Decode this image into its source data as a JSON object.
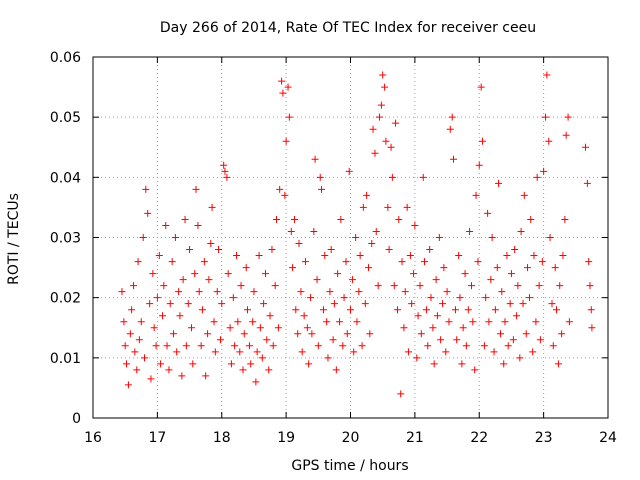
{
  "chart_data": {
    "type": "scatter",
    "title": "Day 266 of 2014, Rate Of TEC Index for receiver ceeu",
    "xlabel": "GPS time / hours",
    "ylabel": "ROTI / TECUs",
    "xlim": [
      16,
      24
    ],
    "ylim": [
      0,
      0.06
    ],
    "xticks": [
      16,
      17,
      18,
      19,
      20,
      21,
      22,
      23,
      24
    ],
    "yticks": [
      0,
      0.01,
      0.02,
      0.03,
      0.04,
      0.05,
      0.06
    ],
    "xtick_labels": [
      "16",
      "17",
      "18",
      "19",
      "20",
      "21",
      "22",
      "23",
      "24"
    ],
    "ytick_labels": [
      "0",
      "0.01",
      "0.02",
      "0.03",
      "0.04",
      "0.05",
      "0.06"
    ],
    "grid": true,
    "marker": "+",
    "color": "#ff0000",
    "series": [
      {
        "name": "ROTI",
        "points": [
          [
            16.45,
            0.021
          ],
          [
            16.48,
            0.016
          ],
          [
            16.5,
            0.012
          ],
          [
            16.52,
            0.009
          ],
          [
            16.55,
            0.0055
          ],
          [
            16.58,
            0.014
          ],
          [
            16.6,
            0.018
          ],
          [
            16.63,
            0.022
          ],
          [
            16.65,
            0.011
          ],
          [
            16.68,
            0.008
          ],
          [
            16.7,
            0.026
          ],
          [
            16.72,
            0.013
          ],
          [
            16.75,
            0.016
          ],
          [
            16.78,
            0.03
          ],
          [
            16.8,
            0.01
          ],
          [
            16.82,
            0.038
          ],
          [
            16.85,
            0.034
          ],
          [
            16.88,
            0.019
          ],
          [
            16.9,
            0.0065
          ],
          [
            16.93,
            0.024
          ],
          [
            16.95,
            0.015
          ],
          [
            16.98,
            0.012
          ],
          [
            17.0,
            0.02
          ],
          [
            17.03,
            0.027
          ],
          [
            17.05,
            0.009
          ],
          [
            17.08,
            0.017
          ],
          [
            17.1,
            0.022
          ],
          [
            17.13,
            0.032
          ],
          [
            17.15,
            0.012
          ],
          [
            17.18,
            0.008
          ],
          [
            17.2,
            0.019
          ],
          [
            17.23,
            0.026
          ],
          [
            17.25,
            0.014
          ],
          [
            17.28,
            0.03
          ],
          [
            17.3,
            0.011
          ],
          [
            17.33,
            0.021
          ],
          [
            17.35,
            0.017
          ],
          [
            17.38,
            0.007
          ],
          [
            17.4,
            0.023
          ],
          [
            17.43,
            0.033
          ],
          [
            17.45,
            0.012
          ],
          [
            17.48,
            0.019
          ],
          [
            17.5,
            0.028
          ],
          [
            17.53,
            0.015
          ],
          [
            17.55,
            0.009
          ],
          [
            17.58,
            0.024
          ],
          [
            17.6,
            0.038
          ],
          [
            17.63,
            0.032
          ],
          [
            17.65,
            0.021
          ],
          [
            17.68,
            0.012
          ],
          [
            17.7,
            0.018
          ],
          [
            17.73,
            0.026
          ],
          [
            17.75,
            0.007
          ],
          [
            17.78,
            0.014
          ],
          [
            17.8,
            0.023
          ],
          [
            17.83,
            0.029
          ],
          [
            17.85,
            0.035
          ],
          [
            17.88,
            0.016
          ],
          [
            17.9,
            0.011
          ],
          [
            17.93,
            0.021
          ],
          [
            17.95,
            0.028
          ],
          [
            17.98,
            0.013
          ],
          [
            18.0,
            0.019
          ],
          [
            18.03,
            0.042
          ],
          [
            18.05,
            0.041
          ],
          [
            18.08,
            0.04
          ],
          [
            18.1,
            0.024
          ],
          [
            18.13,
            0.015
          ],
          [
            18.15,
            0.009
          ],
          [
            18.18,
            0.02
          ],
          [
            18.2,
            0.012
          ],
          [
            18.23,
            0.027
          ],
          [
            18.25,
            0.016
          ],
          [
            18.28,
            0.011
          ],
          [
            18.3,
            0.022
          ],
          [
            18.33,
            0.008
          ],
          [
            18.35,
            0.014
          ],
          [
            18.38,
            0.025
          ],
          [
            18.4,
            0.018
          ],
          [
            18.43,
            0.012
          ],
          [
            18.45,
            0.009
          ],
          [
            18.48,
            0.016
          ],
          [
            18.5,
            0.021
          ],
          [
            18.53,
            0.006
          ],
          [
            18.55,
            0.011
          ],
          [
            18.58,
            0.027
          ],
          [
            18.6,
            0.015
          ],
          [
            18.63,
            0.01
          ],
          [
            18.65,
            0.019
          ],
          [
            18.68,
            0.024
          ],
          [
            18.7,
            0.013
          ],
          [
            18.73,
            0.008
          ],
          [
            18.75,
            0.017
          ],
          [
            18.78,
            0.028
          ],
          [
            18.8,
            0.012
          ],
          [
            18.83,
            0.022
          ],
          [
            18.85,
            0.033
          ],
          [
            18.88,
            0.015
          ],
          [
            18.9,
            0.038
          ],
          [
            18.93,
            0.056
          ],
          [
            18.95,
            0.054
          ],
          [
            18.98,
            0.037
          ],
          [
            19.0,
            0.046
          ],
          [
            19.03,
            0.055
          ],
          [
            19.05,
            0.05
          ],
          [
            19.08,
            0.031
          ],
          [
            19.1,
            0.025
          ],
          [
            19.13,
            0.033
          ],
          [
            19.15,
            0.018
          ],
          [
            19.18,
            0.014
          ],
          [
            19.2,
            0.029
          ],
          [
            19.23,
            0.021
          ],
          [
            19.25,
            0.011
          ],
          [
            19.28,
            0.017
          ],
          [
            19.3,
            0.026
          ],
          [
            19.33,
            0.015
          ],
          [
            19.35,
            0.009
          ],
          [
            19.38,
            0.02
          ],
          [
            19.4,
            0.014
          ],
          [
            19.43,
            0.031
          ],
          [
            19.45,
            0.043
          ],
          [
            19.48,
            0.023
          ],
          [
            19.5,
            0.012
          ],
          [
            19.53,
            0.04
          ],
          [
            19.55,
            0.038
          ],
          [
            19.58,
            0.018
          ],
          [
            19.6,
            0.027
          ],
          [
            19.63,
            0.016
          ],
          [
            19.65,
            0.01
          ],
          [
            19.68,
            0.021
          ],
          [
            19.7,
            0.028
          ],
          [
            19.73,
            0.013
          ],
          [
            19.75,
            0.019
          ],
          [
            19.78,
            0.008
          ],
          [
            19.8,
            0.024
          ],
          [
            19.83,
            0.016
          ],
          [
            19.85,
            0.033
          ],
          [
            19.88,
            0.012
          ],
          [
            19.9,
            0.02
          ],
          [
            19.93,
            0.026
          ],
          [
            19.95,
            0.014
          ],
          [
            19.98,
            0.041
          ],
          [
            20.0,
            0.018
          ],
          [
            20.03,
            0.023
          ],
          [
            20.05,
            0.011
          ],
          [
            20.08,
            0.03
          ],
          [
            20.1,
            0.016
          ],
          [
            20.13,
            0.021
          ],
          [
            20.15,
            0.027
          ],
          [
            20.18,
            0.012
          ],
          [
            20.2,
            0.035
          ],
          [
            20.23,
            0.019
          ],
          [
            20.25,
            0.037
          ],
          [
            20.28,
            0.025
          ],
          [
            20.3,
            0.014
          ],
          [
            20.33,
            0.029
          ],
          [
            20.35,
            0.048
          ],
          [
            20.38,
            0.044
          ],
          [
            20.4,
            0.031
          ],
          [
            20.43,
            0.022
          ],
          [
            20.45,
            0.05
          ],
          [
            20.48,
            0.052
          ],
          [
            20.5,
            0.057
          ],
          [
            20.53,
            0.055
          ],
          [
            20.55,
            0.046
          ],
          [
            20.58,
            0.035
          ],
          [
            20.6,
            0.028
          ],
          [
            20.63,
            0.045
          ],
          [
            20.65,
            0.04
          ],
          [
            20.68,
            0.022
          ],
          [
            20.7,
            0.049
          ],
          [
            20.73,
            0.018
          ],
          [
            20.75,
            0.033
          ],
          [
            20.78,
            0.004
          ],
          [
            20.8,
            0.026
          ],
          [
            20.83,
            0.015
          ],
          [
            20.85,
            0.021
          ],
          [
            20.88,
            0.035
          ],
          [
            20.9,
            0.011
          ],
          [
            20.93,
            0.027
          ],
          [
            20.95,
            0.019
          ],
          [
            20.98,
            0.024
          ],
          [
            21.0,
            0.032
          ],
          [
            21.03,
            0.01
          ],
          [
            21.05,
            0.017
          ],
          [
            21.08,
            0.022
          ],
          [
            21.1,
            0.014
          ],
          [
            21.13,
            0.04
          ],
          [
            21.15,
            0.026
          ],
          [
            21.18,
            0.018
          ],
          [
            21.2,
            0.012
          ],
          [
            21.23,
            0.028
          ],
          [
            21.25,
            0.02
          ],
          [
            21.28,
            0.015
          ],
          [
            21.3,
            0.009
          ],
          [
            21.33,
            0.023
          ],
          [
            21.35,
            0.017
          ],
          [
            21.38,
            0.03
          ],
          [
            21.4,
            0.013
          ],
          [
            21.43,
            0.019
          ],
          [
            21.45,
            0.025
          ],
          [
            21.48,
            0.011
          ],
          [
            21.5,
            0.021
          ],
          [
            21.53,
            0.016
          ],
          [
            21.55,
            0.048
          ],
          [
            21.58,
            0.05
          ],
          [
            21.6,
            0.043
          ],
          [
            21.63,
            0.018
          ],
          [
            21.65,
            0.013
          ],
          [
            21.68,
            0.027
          ],
          [
            21.7,
            0.02
          ],
          [
            21.73,
            0.009
          ],
          [
            21.75,
            0.015
          ],
          [
            21.78,
            0.024
          ],
          [
            21.8,
            0.012
          ],
          [
            21.83,
            0.018
          ],
          [
            21.85,
            0.031
          ],
          [
            21.88,
            0.022
          ],
          [
            21.9,
            0.016
          ],
          [
            21.93,
            0.008
          ],
          [
            21.95,
            0.037
          ],
          [
            21.98,
            0.026
          ],
          [
            22.0,
            0.042
          ],
          [
            22.03,
            0.055
          ],
          [
            22.05,
            0.046
          ],
          [
            22.08,
            0.012
          ],
          [
            22.1,
            0.02
          ],
          [
            22.13,
            0.034
          ],
          [
            22.15,
            0.016
          ],
          [
            22.18,
            0.023
          ],
          [
            22.2,
            0.03
          ],
          [
            22.23,
            0.011
          ],
          [
            22.25,
            0.018
          ],
          [
            22.28,
            0.025
          ],
          [
            22.3,
            0.039
          ],
          [
            22.33,
            0.014
          ],
          [
            22.35,
            0.021
          ],
          [
            22.38,
            0.009
          ],
          [
            22.4,
            0.016
          ],
          [
            22.43,
            0.027
          ],
          [
            22.45,
            0.012
          ],
          [
            22.48,
            0.019
          ],
          [
            22.5,
            0.024
          ],
          [
            22.53,
            0.013
          ],
          [
            22.55,
            0.028
          ],
          [
            22.58,
            0.017
          ],
          [
            22.6,
            0.022
          ],
          [
            22.63,
            0.01
          ],
          [
            22.65,
            0.031
          ],
          [
            22.68,
            0.019
          ],
          [
            22.7,
            0.037
          ],
          [
            22.73,
            0.014
          ],
          [
            22.75,
            0.025
          ],
          [
            22.78,
            0.02
          ],
          [
            22.8,
            0.033
          ],
          [
            22.83,
            0.011
          ],
          [
            22.85,
            0.027
          ],
          [
            22.88,
            0.016
          ],
          [
            22.9,
            0.04
          ],
          [
            22.93,
            0.022
          ],
          [
            22.95,
            0.013
          ],
          [
            22.98,
            0.026
          ],
          [
            23.0,
            0.041
          ],
          [
            23.03,
            0.05
          ],
          [
            23.05,
            0.057
          ],
          [
            23.08,
            0.046
          ],
          [
            23.1,
            0.03
          ],
          [
            23.13,
            0.019
          ],
          [
            23.15,
            0.012
          ],
          [
            23.18,
            0.025
          ],
          [
            23.2,
            0.018
          ],
          [
            23.23,
            0.009
          ],
          [
            23.25,
            0.022
          ],
          [
            23.28,
            0.014
          ],
          [
            23.3,
            0.027
          ],
          [
            23.33,
            0.033
          ],
          [
            23.35,
            0.047
          ],
          [
            23.38,
            0.05
          ],
          [
            23.4,
            0.016
          ],
          [
            23.65,
            0.045
          ],
          [
            23.68,
            0.039
          ],
          [
            23.7,
            0.026
          ],
          [
            23.72,
            0.022
          ],
          [
            23.74,
            0.018
          ],
          [
            23.75,
            0.015
          ]
        ]
      }
    ]
  }
}
